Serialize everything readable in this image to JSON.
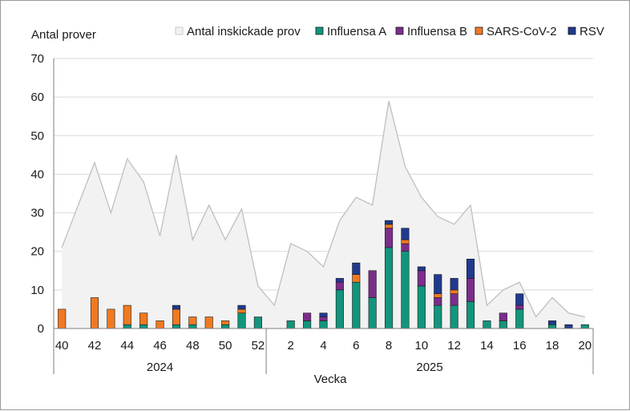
{
  "chart_data": {
    "type": "bar",
    "ylabel": "Antal prover",
    "xlabel": "Vecka",
    "ylim": [
      0,
      70
    ],
    "yticks": [
      0,
      10,
      20,
      30,
      40,
      50,
      60,
      70
    ],
    "grid": true,
    "legend_position": "top",
    "weeks": [
      40,
      41,
      42,
      43,
      44,
      45,
      46,
      47,
      48,
      49,
      50,
      51,
      52,
      1,
      2,
      3,
      4,
      5,
      6,
      7,
      8,
      9,
      10,
      11,
      12,
      13,
      14,
      15,
      16,
      17,
      18,
      19,
      20
    ],
    "tick_labels": [
      "40",
      "42",
      "44",
      "46",
      "48",
      "50",
      "52",
      "2",
      "4",
      "6",
      "8",
      "10",
      "12",
      "14",
      "16",
      "18",
      "20"
    ],
    "year_groups": [
      {
        "label": "2024",
        "first_week_index": 0,
        "last_week_index": 12
      },
      {
        "label": "2025",
        "first_week_index": 13,
        "last_week_index": 32
      }
    ],
    "area_series": {
      "name": "Antal inskickade prov",
      "color": "#f2f2f2",
      "line_color": "#bfbfbf",
      "values": [
        21,
        32,
        43,
        30,
        44,
        38,
        24,
        45,
        23,
        32,
        23,
        31,
        11,
        6,
        22,
        20,
        16,
        28,
        34,
        32,
        59,
        42,
        34,
        29,
        27,
        32,
        6,
        10,
        12,
        3,
        8,
        4,
        3
      ]
    },
    "series": [
      {
        "name": "Influensa A",
        "color": "#12957c",
        "values": [
          0,
          0,
          0,
          0,
          1,
          1,
          0,
          1,
          1,
          0,
          1,
          4,
          3,
          0,
          2,
          2,
          2,
          10,
          12,
          8,
          21,
          20,
          11,
          6,
          6,
          7,
          2,
          2,
          5,
          0,
          1,
          0,
          1
        ]
      },
      {
        "name": "Influensa B",
        "color": "#7b2d8b",
        "values": [
          0,
          0,
          0,
          0,
          0,
          0,
          0,
          0,
          0,
          0,
          0,
          0,
          0,
          0,
          0,
          2,
          1,
          2,
          0,
          7,
          5,
          2,
          4,
          2,
          3,
          6,
          0,
          2,
          1,
          0,
          0,
          0,
          0
        ]
      },
      {
        "name": "SARS-CoV-2",
        "color": "#f07a22",
        "values": [
          5,
          0,
          8,
          5,
          5,
          3,
          2,
          4,
          2,
          3,
          1,
          1,
          0,
          0,
          0,
          0,
          0,
          0,
          2,
          0,
          1,
          1,
          0,
          1,
          1,
          0,
          0,
          0,
          0,
          0,
          0,
          0,
          0
        ]
      },
      {
        "name": "RSV",
        "color": "#1f3a8f",
        "values": [
          0,
          0,
          0,
          0,
          0,
          0,
          0,
          1,
          0,
          0,
          0,
          1,
          0,
          0,
          0,
          0,
          1,
          1,
          3,
          0,
          1,
          3,
          1,
          5,
          3,
          5,
          0,
          0,
          3,
          0,
          1,
          1,
          0
        ]
      }
    ]
  }
}
